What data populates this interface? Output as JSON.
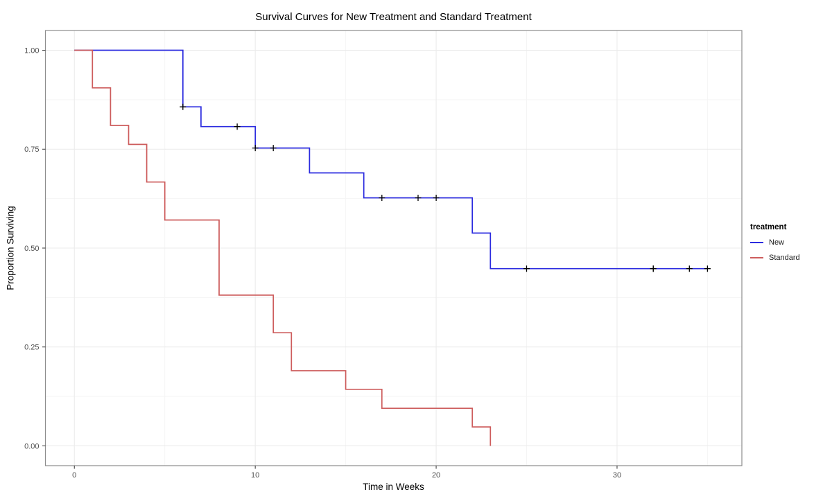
{
  "chart_data": {
    "type": "line",
    "subtype": "kaplan-meier-step-survival",
    "title": "Survival Curves for New Treatment and Standard Treatment",
    "xlabel": "Time in Weeks",
    "ylabel": "Proportion Surviving",
    "xlim": [
      -1.6,
      36.9
    ],
    "ylim": [
      -0.05,
      1.05
    ],
    "grid": "major+minor",
    "legend_position": "right",
    "x_ticks": [
      {
        "value": 0,
        "label": "0"
      },
      {
        "value": 10,
        "label": "10"
      },
      {
        "value": 20,
        "label": "20"
      },
      {
        "value": 30,
        "label": "30"
      }
    ],
    "x_minor_ticks": [
      5,
      15,
      25,
      35
    ],
    "y_ticks": [
      {
        "value": 0.0,
        "label": "0.00"
      },
      {
        "value": 0.25,
        "label": "0.25"
      },
      {
        "value": 0.5,
        "label": "0.50"
      },
      {
        "value": 0.75,
        "label": "0.75"
      },
      {
        "value": 1.0,
        "label": "1.00"
      }
    ],
    "y_minor_ticks": [
      0.125,
      0.375,
      0.625,
      0.875
    ],
    "series": [
      {
        "name": "New",
        "color": "#2B2BDF",
        "start": [
          0,
          1.0
        ],
        "steps": [
          [
            6,
            0.857
          ],
          [
            7,
            0.807
          ],
          [
            10,
            0.753
          ],
          [
            13,
            0.69
          ],
          [
            16,
            0.627
          ],
          [
            22,
            0.538
          ],
          [
            23,
            0.448
          ]
        ],
        "end_time": 35,
        "censored": [
          [
            6,
            0.857
          ],
          [
            9,
            0.807
          ],
          [
            10,
            0.753
          ],
          [
            11,
            0.753
          ],
          [
            17,
            0.627
          ],
          [
            19,
            0.627
          ],
          [
            20,
            0.627
          ],
          [
            25,
            0.448
          ],
          [
            32,
            0.448
          ],
          [
            32,
            0.448
          ],
          [
            34,
            0.448
          ],
          [
            35,
            0.448
          ]
        ]
      },
      {
        "name": "Standard",
        "color": "#CD5C5C",
        "start": [
          0,
          1.0
        ],
        "steps": [
          [
            1,
            0.905
          ],
          [
            2,
            0.81
          ],
          [
            3,
            0.762
          ],
          [
            4,
            0.667
          ],
          [
            5,
            0.571
          ],
          [
            8,
            0.381
          ],
          [
            11,
            0.286
          ],
          [
            12,
            0.19
          ],
          [
            15,
            0.143
          ],
          [
            17,
            0.095
          ],
          [
            22,
            0.048
          ],
          [
            23,
            0.0
          ]
        ],
        "end_time": 23,
        "censored": []
      }
    ],
    "censor_marker": {
      "glyph": "plus",
      "color": "#000000",
      "half_size": 4.5
    },
    "colors": {
      "panel_background": "#FFFFFF",
      "panel_border": "#8C8C8C",
      "grid_major": "#EBEBEB",
      "grid_minor": "#F5F5F5",
      "axis_tick": "#333333",
      "tick_label": "#4D4D4D"
    }
  },
  "legend": {
    "title": "treatment",
    "items": [
      {
        "label": "New",
        "color": "#2B2BDF"
      },
      {
        "label": "Standard",
        "color": "#CD5C5C"
      }
    ]
  }
}
